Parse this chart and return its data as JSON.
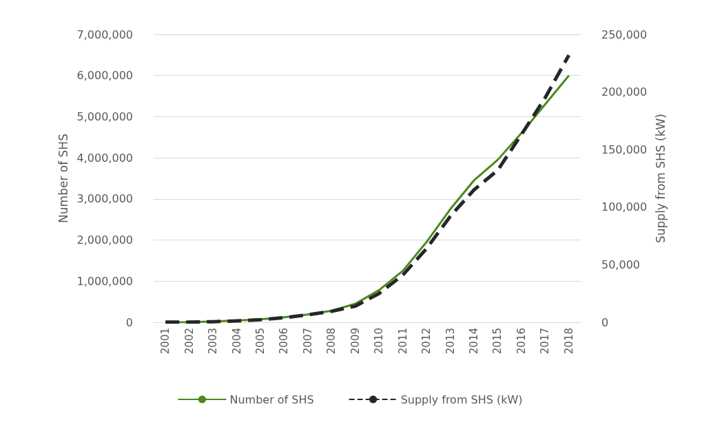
{
  "chart_data": {
    "type": "line",
    "categories": [
      "2001",
      "2002",
      "2003",
      "2004",
      "2005",
      "2006",
      "2007",
      "2008",
      "2009",
      "2010",
      "2011",
      "2012",
      "2013",
      "2014",
      "2015",
      "2016",
      "2017",
      "2018"
    ],
    "series": [
      {
        "name": "Number of SHS",
        "color": "#4a8a1c",
        "line_style": "solid",
        "values": [
          0,
          0,
          20000,
          40000,
          70000,
          120000,
          190000,
          280000,
          450000,
          780000,
          1250000,
          1950000,
          2750000,
          3450000,
          3950000,
          4600000,
          5300000,
          6000000
        ]
      },
      {
        "name": "Supply from SHS (kW)",
        "color": "#262626",
        "line_style": "dashed",
        "axis": "y2",
        "values": [
          100,
          200,
          500,
          1200,
          2200,
          4000,
          6500,
          9500,
          14000,
          25000,
          41000,
          64000,
          92000,
          115000,
          132000,
          163000,
          195000,
          232000
        ]
      }
    ],
    "ylabel": "Number of SHS",
    "y2label": "Supply from SHS (kW)",
    "ylim": [
      0,
      7000000
    ],
    "yticks": [
      0,
      {
        "value": 1000000,
        "label": "1,000,000"
      },
      {
        "value": 2000000,
        "label": "2,000,000"
      },
      {
        "value": 3000000,
        "label": "3,000,000"
      },
      {
        "value": 4000000,
        "label": "4,000,000"
      },
      {
        "value": 5000000,
        "label": "5,000,000"
      },
      {
        "value": 6000000,
        "label": "6,000,000"
      },
      {
        "value": 7000000,
        "label": "7,000,000"
      }
    ],
    "y2lim": [
      0,
      250000
    ],
    "y2ticks": [
      0,
      {
        "value": 50000,
        "label": "50,000"
      },
      {
        "value": 100000,
        "label": "100,000"
      },
      {
        "value": 150000,
        "label": "150,000"
      },
      {
        "value": 200000,
        "label": "200,000"
      },
      {
        "value": 250000,
        "label": "250,000"
      }
    ],
    "grid": "y",
    "legend": "bottom",
    "marker": "none"
  }
}
